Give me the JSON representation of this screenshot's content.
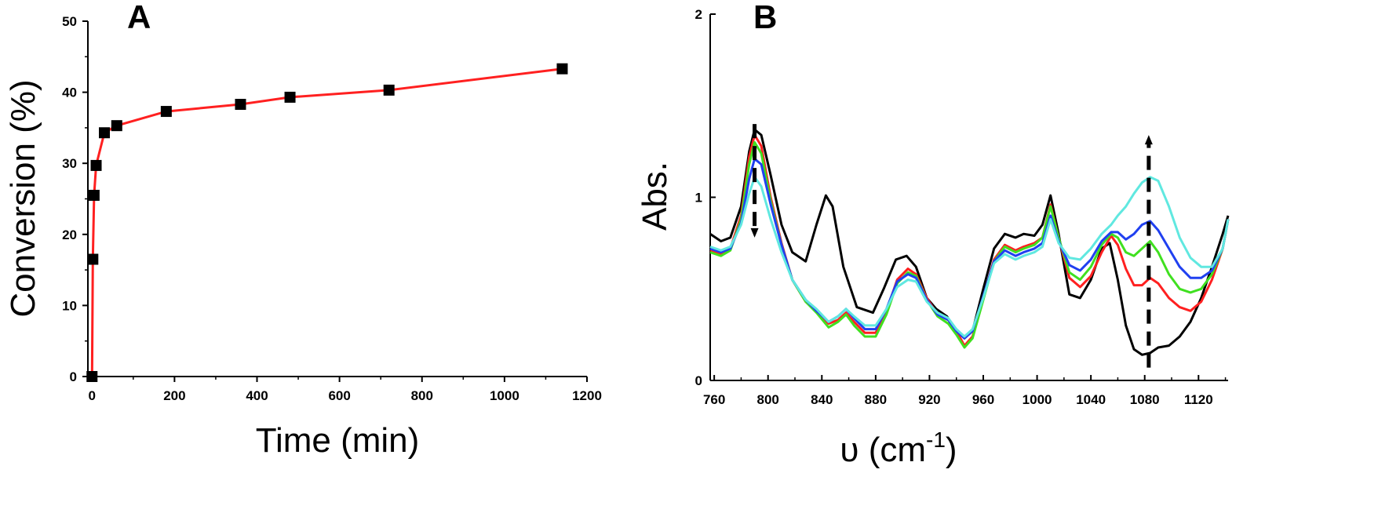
{
  "chart_data": [
    {
      "type": "line",
      "panel_label": "A",
      "xlabel": "Time (min)",
      "ylabel": "Conversion (%)",
      "xlim": [
        -10,
        1200
      ],
      "ylim": [
        0,
        50
      ],
      "xticks": [
        0,
        200,
        400,
        600,
        800,
        1000,
        1200
      ],
      "yticks": [
        0,
        10,
        20,
        30,
        40,
        50
      ],
      "grid": false,
      "series": [
        {
          "color": "#ff2020",
          "marker": "square",
          "marker_color": "#000000",
          "x": [
            0,
            2,
            5,
            10,
            30,
            60,
            180,
            360,
            480,
            720,
            1140
          ],
          "y": [
            0,
            16.5,
            25.5,
            29.7,
            34.3,
            35.3,
            37.3,
            38.3,
            39.3,
            40.3,
            43.3
          ]
        }
      ]
    },
    {
      "type": "line",
      "panel_label": "B",
      "xlabel": "υ (cm",
      "xlabel_sup": "-1",
      "xlabel_end": ")",
      "ylabel": "Abs.",
      "xlim": [
        757,
        1142
      ],
      "ylim": [
        0,
        2
      ],
      "xticks": [
        760,
        800,
        840,
        880,
        920,
        960,
        1000,
        1040,
        1080,
        1120
      ],
      "yticks": [
        0,
        1,
        2
      ],
      "grid": false,
      "annotations": [
        {
          "type": "dashed-arrow",
          "x": 790,
          "y_from": 1.4,
          "y_to": 0.78,
          "direction": "down"
        },
        {
          "type": "dashed-arrow",
          "x": 1083,
          "y_from": 0.07,
          "y_to": 1.34,
          "direction": "up"
        }
      ],
      "series": [
        {
          "color": "#000000",
          "x": [
            757,
            765,
            772,
            780,
            786,
            790,
            795,
            802,
            810,
            818,
            828,
            836,
            843,
            848,
            856,
            866,
            878,
            886,
            895,
            903,
            910,
            918,
            925,
            933,
            940,
            946,
            952,
            960,
            968,
            976,
            984,
            990,
            998,
            1004,
            1010,
            1016,
            1024,
            1032,
            1040,
            1048,
            1054,
            1060,
            1066,
            1072,
            1078,
            1084,
            1090,
            1098,
            1106,
            1114,
            1122,
            1130,
            1138,
            1142
          ],
          "y": [
            0.8,
            0.76,
            0.78,
            0.95,
            1.25,
            1.37,
            1.34,
            1.12,
            0.85,
            0.7,
            0.65,
            0.85,
            1.01,
            0.95,
            0.62,
            0.4,
            0.37,
            0.5,
            0.66,
            0.68,
            0.62,
            0.45,
            0.39,
            0.35,
            0.27,
            0.23,
            0.27,
            0.5,
            0.72,
            0.8,
            0.78,
            0.8,
            0.79,
            0.85,
            1.01,
            0.8,
            0.47,
            0.45,
            0.55,
            0.72,
            0.75,
            0.55,
            0.3,
            0.17,
            0.14,
            0.15,
            0.18,
            0.19,
            0.24,
            0.32,
            0.45,
            0.62,
            0.8,
            0.9
          ]
        },
        {
          "color": "#ff2020",
          "x": [
            757,
            765,
            772,
            780,
            786,
            790,
            795,
            802,
            810,
            818,
            828,
            836,
            845,
            852,
            858,
            864,
            872,
            880,
            888,
            896,
            904,
            910,
            918,
            926,
            934,
            940,
            946,
            952,
            960,
            968,
            976,
            984,
            990,
            998,
            1004,
            1010,
            1016,
            1024,
            1032,
            1040,
            1048,
            1055,
            1060,
            1066,
            1072,
            1078,
            1084,
            1090,
            1098,
            1106,
            1114,
            1122,
            1130,
            1138,
            1142
          ],
          "y": [
            0.71,
            0.69,
            0.72,
            0.9,
            1.22,
            1.34,
            1.28,
            1.0,
            0.75,
            0.55,
            0.43,
            0.38,
            0.31,
            0.33,
            0.37,
            0.32,
            0.26,
            0.26,
            0.38,
            0.55,
            0.61,
            0.58,
            0.45,
            0.36,
            0.33,
            0.27,
            0.19,
            0.24,
            0.45,
            0.66,
            0.74,
            0.71,
            0.73,
            0.75,
            0.78,
            0.96,
            0.78,
            0.56,
            0.51,
            0.57,
            0.7,
            0.79,
            0.74,
            0.61,
            0.52,
            0.52,
            0.56,
            0.53,
            0.45,
            0.4,
            0.38,
            0.43,
            0.55,
            0.72,
            0.88
          ]
        },
        {
          "color": "#40e020",
          "x": [
            757,
            765,
            772,
            780,
            786,
            790,
            795,
            802,
            810,
            818,
            828,
            836,
            845,
            852,
            858,
            864,
            872,
            880,
            888,
            896,
            904,
            910,
            918,
            926,
            934,
            940,
            946,
            952,
            960,
            968,
            976,
            984,
            990,
            998,
            1004,
            1010,
            1016,
            1024,
            1032,
            1040,
            1048,
            1055,
            1060,
            1066,
            1072,
            1078,
            1084,
            1090,
            1098,
            1106,
            1114,
            1122,
            1130,
            1138,
            1142
          ],
          "y": [
            0.7,
            0.68,
            0.71,
            0.88,
            1.18,
            1.3,
            1.24,
            0.98,
            0.74,
            0.55,
            0.43,
            0.37,
            0.29,
            0.32,
            0.36,
            0.3,
            0.24,
            0.24,
            0.36,
            0.53,
            0.59,
            0.57,
            0.44,
            0.35,
            0.31,
            0.25,
            0.18,
            0.23,
            0.44,
            0.65,
            0.73,
            0.7,
            0.72,
            0.74,
            0.78,
            0.95,
            0.78,
            0.59,
            0.55,
            0.62,
            0.74,
            0.8,
            0.78,
            0.7,
            0.68,
            0.72,
            0.76,
            0.7,
            0.58,
            0.5,
            0.48,
            0.5,
            0.58,
            0.72,
            0.88
          ]
        },
        {
          "color": "#2040f0",
          "x": [
            757,
            765,
            772,
            780,
            786,
            790,
            795,
            802,
            810,
            818,
            828,
            836,
            845,
            852,
            858,
            864,
            872,
            880,
            888,
            896,
            904,
            910,
            918,
            926,
            934,
            940,
            946,
            952,
            960,
            968,
            976,
            984,
            990,
            998,
            1004,
            1010,
            1016,
            1024,
            1032,
            1040,
            1048,
            1055,
            1060,
            1066,
            1072,
            1078,
            1084,
            1090,
            1098,
            1106,
            1114,
            1122,
            1130,
            1138,
            1142
          ],
          "y": [
            0.72,
            0.7,
            0.72,
            0.86,
            1.1,
            1.21,
            1.18,
            0.96,
            0.74,
            0.55,
            0.44,
            0.38,
            0.32,
            0.35,
            0.39,
            0.34,
            0.28,
            0.28,
            0.39,
            0.54,
            0.58,
            0.56,
            0.44,
            0.36,
            0.33,
            0.27,
            0.23,
            0.27,
            0.46,
            0.65,
            0.71,
            0.68,
            0.7,
            0.72,
            0.75,
            0.9,
            0.76,
            0.63,
            0.6,
            0.66,
            0.76,
            0.81,
            0.81,
            0.77,
            0.8,
            0.85,
            0.87,
            0.82,
            0.72,
            0.62,
            0.56,
            0.56,
            0.6,
            0.72,
            0.88
          ]
        },
        {
          "color": "#60e8e0",
          "x": [
            757,
            765,
            772,
            780,
            786,
            790,
            795,
            802,
            810,
            818,
            828,
            836,
            845,
            852,
            858,
            864,
            872,
            880,
            888,
            896,
            904,
            910,
            918,
            926,
            934,
            940,
            946,
            952,
            960,
            968,
            976,
            984,
            990,
            998,
            1004,
            1010,
            1016,
            1024,
            1032,
            1040,
            1048,
            1055,
            1060,
            1066,
            1072,
            1078,
            1084,
            1090,
            1098,
            1106,
            1114,
            1122,
            1130,
            1138,
            1142
          ],
          "y": [
            0.73,
            0.71,
            0.73,
            0.85,
            1.02,
            1.11,
            1.06,
            0.88,
            0.7,
            0.55,
            0.44,
            0.39,
            0.32,
            0.35,
            0.39,
            0.35,
            0.3,
            0.3,
            0.39,
            0.51,
            0.55,
            0.54,
            0.43,
            0.37,
            0.34,
            0.28,
            0.24,
            0.28,
            0.45,
            0.64,
            0.69,
            0.66,
            0.68,
            0.7,
            0.73,
            0.88,
            0.75,
            0.67,
            0.66,
            0.72,
            0.8,
            0.85,
            0.9,
            0.95,
            1.02,
            1.08,
            1.11,
            1.09,
            0.95,
            0.78,
            0.67,
            0.62,
            0.62,
            0.72,
            0.88
          ]
        }
      ]
    }
  ]
}
